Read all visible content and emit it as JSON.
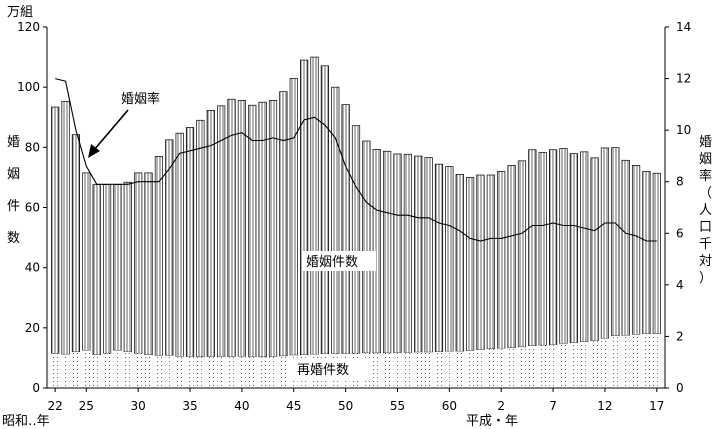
{
  "chart_data": {
    "type": "bar",
    "left_unit": "万組",
    "left_label_chars": [
      "婚",
      "姻",
      "件",
      "数"
    ],
    "right_label_chars": [
      "婚",
      "姻",
      "率",
      "（",
      "人",
      "口",
      "千",
      "対",
      "）"
    ],
    "ylim_left": [
      0,
      120
    ],
    "ylim_right": [
      0,
      14
    ],
    "left_ticks": [
      "0",
      "20",
      "40",
      "60",
      "80",
      "100",
      "120"
    ],
    "right_ticks": [
      "0",
      "2",
      "4",
      "6",
      "8",
      "10",
      "12",
      "14"
    ],
    "x_tick_labels": [
      {
        "index": 0,
        "label": "22"
      },
      {
        "index": 3,
        "label": "25"
      },
      {
        "index": 8,
        "label": "30"
      },
      {
        "index": 13,
        "label": "35"
      },
      {
        "index": 18,
        "label": "40"
      },
      {
        "index": 23,
        "label": "45"
      },
      {
        "index": 28,
        "label": "50"
      },
      {
        "index": 33,
        "label": "55"
      },
      {
        "index": 38,
        "label": "60"
      },
      {
        "index": 43,
        "label": "2"
      },
      {
        "index": 48,
        "label": "7"
      },
      {
        "index": 53,
        "label": "12"
      },
      {
        "index": 58,
        "label": "17"
      }
    ],
    "era_left": "昭和‥年",
    "era_right": "平成・年",
    "marriages": [
      93.4,
      95.3,
      84.2,
      71.5,
      67.6,
      67.6,
      67.6,
      68.4,
      71.5,
      71.5,
      77.0,
      82.5,
      84.7,
      86.6,
      89.0,
      92.3,
      93.8,
      96.0,
      95.6,
      94.0,
      95.0,
      95.6,
      98.5,
      102.9,
      109.0,
      110.0,
      107.1,
      100.0,
      94.2,
      87.2,
      82.1,
      79.3,
      78.7,
      77.8,
      77.7,
      77.1,
      76.6,
      74.4,
      73.6,
      71.0,
      70.0,
      70.8,
      70.8,
      72.0,
      74.0,
      75.5,
      79.2,
      78.3,
      79.2,
      79.6,
      77.9,
      78.5,
      76.5,
      79.8,
      79.9,
      75.7,
      74.0,
      72.0,
      71.4
    ],
    "remarriages": [
      11.5,
      11.2,
      12.0,
      12.5,
      11.0,
      11.5,
      12.5,
      12.0,
      11.5,
      11.0,
      10.8,
      10.8,
      10.5,
      10.4,
      10.3,
      10.4,
      10.4,
      10.4,
      10.5,
      10.4,
      10.3,
      10.4,
      10.6,
      10.9,
      11.0,
      11.2,
      11.3,
      11.4,
      11.4,
      11.5,
      11.6,
      11.6,
      11.6,
      11.7,
      11.8,
      11.9,
      11.9,
      12.0,
      12.2,
      12.2,
      12.4,
      12.7,
      13.0,
      13.2,
      13.3,
      13.6,
      14.0,
      14.2,
      14.4,
      14.8,
      15.0,
      15.3,
      15.7,
      16.5,
      17.3,
      17.5,
      17.8,
      18.0,
      18.0
    ],
    "marriage_rate": [
      12.0,
      11.9,
      10.0,
      8.6,
      7.9,
      7.9,
      7.9,
      7.9,
      8.0,
      8.0,
      8.0,
      8.5,
      9.1,
      9.2,
      9.3,
      9.4,
      9.6,
      9.8,
      9.9,
      9.6,
      9.6,
      9.7,
      9.6,
      9.7,
      10.4,
      10.5,
      10.2,
      9.7,
      8.6,
      7.8,
      7.2,
      6.9,
      6.8,
      6.7,
      6.7,
      6.6,
      6.6,
      6.4,
      6.3,
      6.1,
      5.8,
      5.7,
      5.8,
      5.8,
      5.9,
      6.0,
      6.3,
      6.3,
      6.4,
      6.3,
      6.3,
      6.2,
      6.1,
      6.4,
      6.4,
      6.0,
      5.9,
      5.7,
      5.7
    ],
    "annotations": {
      "rate_label": "婚姻率",
      "marriage_label": "婚姻件数",
      "remarriage_label": "再婚件数"
    }
  }
}
